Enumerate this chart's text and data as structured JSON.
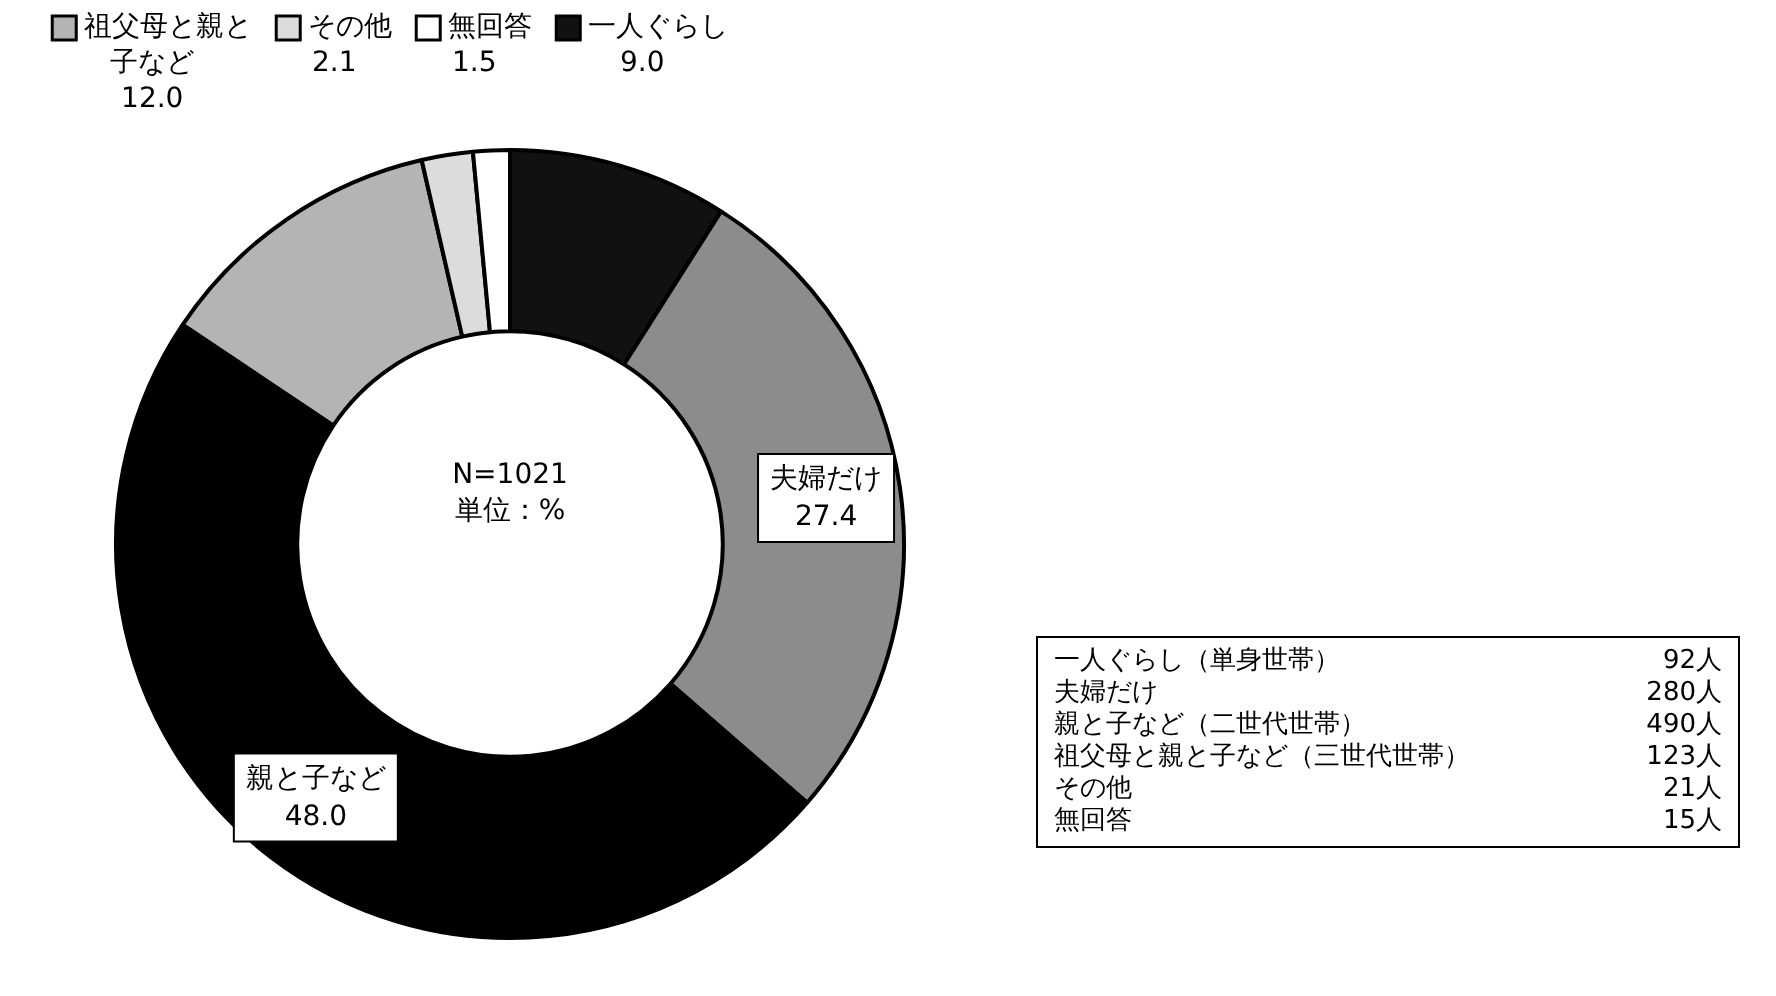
{
  "chart_data": {
    "type": "donut",
    "categories": [
      "一人ぐらし",
      "夫婦だけ",
      "親と子など",
      "祖父母と親と子など",
      "その他",
      "無回答"
    ],
    "values": [
      9.0,
      27.4,
      48.0,
      12.0,
      2.1,
      1.5
    ],
    "value_labels": [
      "9.0",
      "27.4",
      "48.0",
      "12.0",
      "2.1",
      "1.5"
    ],
    "colors": [
      "#111111",
      "#8c8c8c",
      "#000000",
      "#b4b4b4",
      "#dcdcdc",
      "#ffffff"
    ],
    "legend": "top",
    "annotations": [
      "N=1021",
      "単位：%",
      "一人ぐらし（単身世帯）",
      "92人",
      "夫婦だけ",
      "280人",
      "親と子など（二世代世帯）",
      "490人",
      "祖父母と親と子など（三世代世帯）",
      "123人",
      "その他",
      "21人",
      "無回答",
      "15人"
    ]
  }
}
